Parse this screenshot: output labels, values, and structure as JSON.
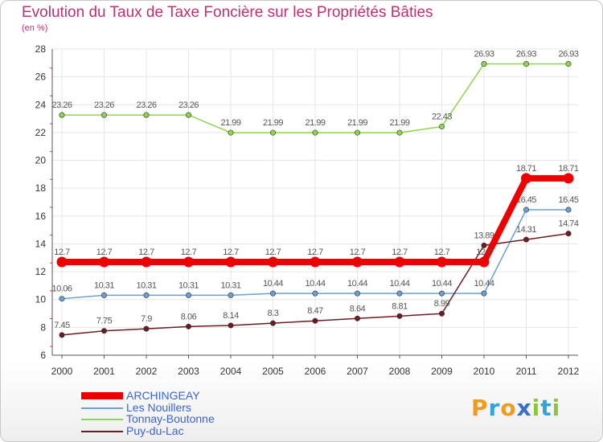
{
  "title": "Evolution du Taux de Taxe Foncière sur les Propriétés Bâties",
  "unit_label": "(en %)",
  "chart_data": {
    "type": "line",
    "title": "Evolution du Taux de Taxe Foncière sur les Propriétés Bâties",
    "xlabel": "",
    "ylabel": "(en %)",
    "ylim": [
      6,
      28
    ],
    "yticks": [
      "6",
      "8",
      "10",
      "12",
      "14",
      "16",
      "18",
      "20",
      "22",
      "24",
      "26",
      "28"
    ],
    "x": [
      "2000",
      "2001",
      "2002",
      "2003",
      "2004",
      "2005",
      "2006",
      "2007",
      "2008",
      "2009",
      "2010",
      "2011",
      "2012"
    ],
    "grid": true,
    "legend_position": "bottom-left",
    "series": [
      {
        "name": "Tonnay-Boutonne",
        "color": "#8fd44c",
        "values": [
          23.26,
          23.26,
          23.26,
          23.26,
          21.99,
          21.99,
          21.99,
          21.99,
          21.99,
          22.43,
          26.93,
          26.93,
          26.93
        ],
        "labels": [
          "23.26",
          "23.26",
          "23.26",
          "23.26",
          "21.99",
          "21.99",
          "21.99",
          "21.99",
          "21.99",
          "22.43",
          "26.93",
          "26.93",
          "26.93"
        ]
      },
      {
        "name": "Les Nouillers",
        "color": "#6b9fd0",
        "values": [
          10.06,
          10.31,
          10.31,
          10.31,
          10.31,
          10.44,
          10.44,
          10.44,
          10.44,
          10.44,
          10.44,
          16.45,
          16.45
        ],
        "labels": [
          "10.06",
          "10.31",
          "10.31",
          "10.31",
          "10.31",
          "10.44",
          "10.44",
          "10.44",
          "10.44",
          "10.44",
          "10.44",
          "16.45",
          "16.45"
        ]
      },
      {
        "name": "Puy-du-Lac",
        "color": "#6e1a22",
        "values": [
          7.45,
          7.75,
          7.9,
          8.06,
          8.14,
          8.3,
          8.47,
          8.64,
          8.81,
          8.99,
          13.89,
          14.31,
          14.74
        ],
        "labels": [
          "7.45",
          "7.75",
          "7.9",
          "8.06",
          "8.14",
          "8.3",
          "8.47",
          "8.64",
          "8.81",
          "8.99",
          "13.89",
          "14.31",
          "14.74"
        ]
      },
      {
        "name": "ARCHINGEAY",
        "color": "#ee0000",
        "values": [
          12.7,
          12.7,
          12.7,
          12.7,
          12.7,
          12.7,
          12.7,
          12.7,
          12.7,
          12.7,
          12.7,
          18.71,
          18.71
        ],
        "labels": [
          "12.7",
          "12.7",
          "12.7",
          "12.7",
          "12.7",
          "12.7",
          "12.7",
          "12.7",
          "12.7",
          "12.7",
          "12.7",
          "18.71",
          "18.71"
        ]
      }
    ],
    "legend": [
      "ARCHINGEAY",
      "Les Nouillers",
      "Tonnay-Boutonne",
      "Puy-du-Lac"
    ]
  },
  "logo": {
    "letters": [
      "P",
      "r",
      "o",
      "x",
      "i",
      "t",
      "i"
    ],
    "colors": [
      "#f29a1d",
      "#33a2e0",
      "#f29a1d",
      "#3a6fc8",
      "#8cc63e",
      "#33a2e0",
      "#8cc63e"
    ]
  }
}
